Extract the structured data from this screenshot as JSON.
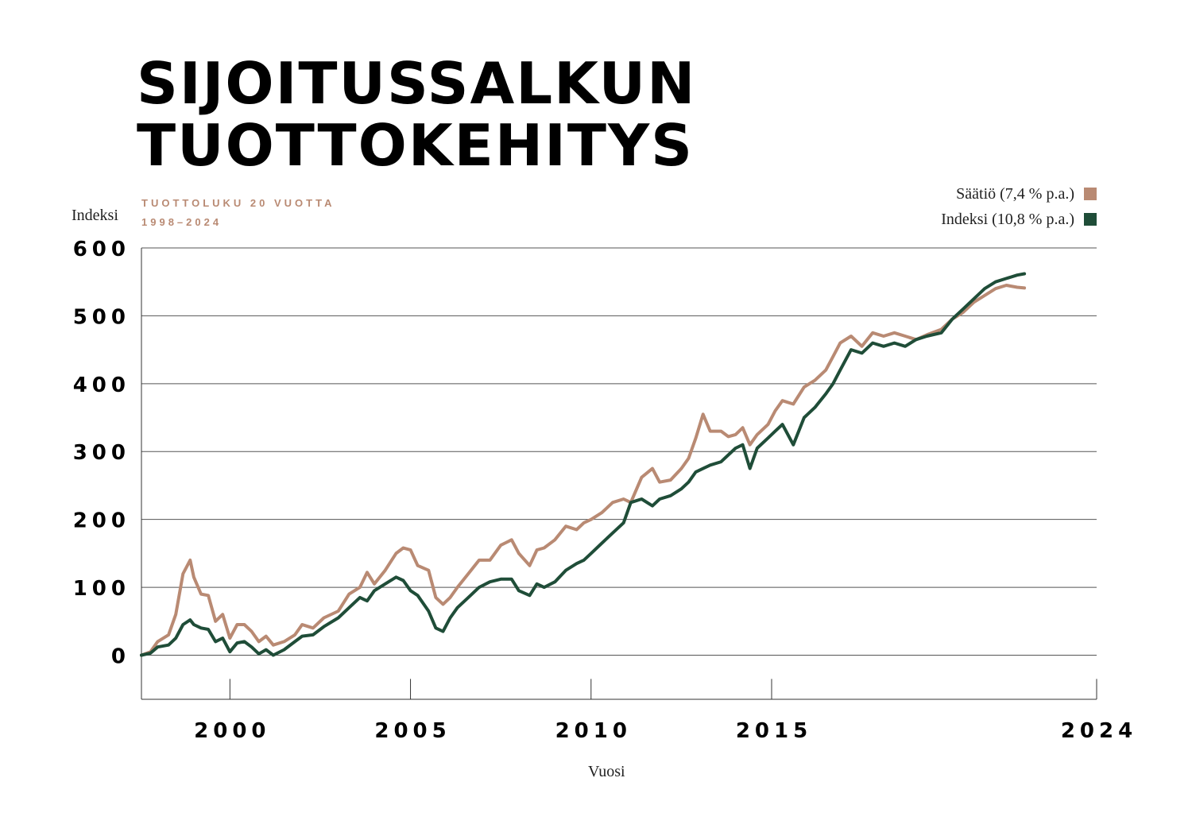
{
  "title_line1": "SIJOITUSSALKUN",
  "title_line2": "TUOTTOKEHITYS",
  "subtitle_line1": "TUOTTOLUKU 20 VUOTTA",
  "subtitle_line2": "1998–2024",
  "colors": {
    "saatio": "#b98a73",
    "indeksi": "#1f4d38",
    "subtitle": "#b98a73",
    "grid": "#555555"
  },
  "chart_data": {
    "type": "line",
    "xlabel": "Vuosi",
    "ylabel": "Indeksi",
    "xlim": [
      1997.55,
      2024.0
    ],
    "ylim": [
      -65,
      600
    ],
    "yticks": [
      0,
      100,
      200,
      300,
      400,
      500,
      600
    ],
    "xticks": [
      2000,
      2005,
      2010,
      2015,
      2024
    ],
    "grid": "horizontal",
    "legend": "top-right",
    "series": [
      {
        "name": "Säätiö (7,4 % p.a.)",
        "x": [
          1997.55,
          1997.8,
          1998.0,
          1998.3,
          1998.5,
          1998.7,
          1998.9,
          1999.0,
          1999.2,
          1999.4,
          1999.6,
          1999.8,
          2000.0,
          2000.2,
          2000.4,
          2000.6,
          2000.8,
          2001.0,
          2001.2,
          2001.5,
          2001.8,
          2002.0,
          2002.3,
          2002.6,
          2003.0,
          2003.3,
          2003.6,
          2003.8,
          2004.0,
          2004.3,
          2004.6,
          2004.8,
          2005.0,
          2005.2,
          2005.5,
          2005.7,
          2005.9,
          2006.1,
          2006.3,
          2006.6,
          2006.9,
          2007.2,
          2007.5,
          2007.8,
          2008.0,
          2008.3,
          2008.5,
          2008.7,
          2009.0,
          2009.3,
          2009.6,
          2009.8,
          2010.0,
          2010.3,
          2010.6,
          2010.9,
          2011.1,
          2011.4,
          2011.7,
          2011.9,
          2012.2,
          2012.5,
          2012.7,
          2012.9,
          2013.1,
          2013.3,
          2013.6,
          2013.8,
          2014.0,
          2014.2,
          2014.4,
          2014.6,
          2014.9,
          2015.1,
          2015.3,
          2015.6,
          2015.9,
          2016.2,
          2016.5,
          2016.7,
          2016.9,
          2017.2,
          2017.5,
          2017.8,
          2018.1,
          2018.4,
          2018.7,
          2019.0,
          2019.3,
          2019.7,
          2020.0,
          2020.3,
          2020.6,
          2020.9,
          2021.2,
          2021.5,
          2021.8,
          2022.0
        ],
        "values": [
          0,
          5,
          20,
          30,
          60,
          120,
          140,
          115,
          90,
          88,
          50,
          60,
          25,
          45,
          45,
          35,
          20,
          28,
          15,
          20,
          30,
          45,
          40,
          55,
          65,
          90,
          100,
          122,
          105,
          125,
          150,
          158,
          155,
          132,
          125,
          85,
          75,
          85,
          100,
          120,
          140,
          140,
          162,
          170,
          150,
          132,
          155,
          158,
          170,
          190,
          185,
          195,
          200,
          210,
          225,
          230,
          225,
          262,
          275,
          255,
          258,
          275,
          290,
          320,
          355,
          330,
          330,
          322,
          325,
          335,
          310,
          325,
          340,
          360,
          375,
          370,
          395,
          405,
          420,
          440,
          460,
          470,
          455,
          475,
          470,
          475,
          470,
          465,
          472,
          480,
          495,
          505,
          520,
          530,
          540,
          545,
          542,
          541
        ]
      },
      {
        "name": "Indeksi (10,8 % p.a.)",
        "x": [
          1997.55,
          1997.8,
          1998.0,
          1998.3,
          1998.5,
          1998.7,
          1998.9,
          1999.0,
          1999.2,
          1999.4,
          1999.6,
          1999.8,
          2000.0,
          2000.2,
          2000.4,
          2000.6,
          2000.8,
          2001.0,
          2001.2,
          2001.5,
          2001.8,
          2002.0,
          2002.3,
          2002.6,
          2003.0,
          2003.3,
          2003.6,
          2003.8,
          2004.0,
          2004.3,
          2004.6,
          2004.8,
          2005.0,
          2005.2,
          2005.5,
          2005.7,
          2005.9,
          2006.1,
          2006.3,
          2006.6,
          2006.9,
          2007.2,
          2007.5,
          2007.8,
          2008.0,
          2008.3,
          2008.5,
          2008.7,
          2009.0,
          2009.3,
          2009.6,
          2009.8,
          2010.0,
          2010.3,
          2010.6,
          2010.9,
          2011.1,
          2011.4,
          2011.7,
          2011.9,
          2012.2,
          2012.5,
          2012.7,
          2012.9,
          2013.1,
          2013.3,
          2013.6,
          2013.8,
          2014.0,
          2014.2,
          2014.4,
          2014.6,
          2014.9,
          2015.1,
          2015.3,
          2015.6,
          2015.9,
          2016.2,
          2016.5,
          2016.7,
          2016.9,
          2017.2,
          2017.5,
          2017.8,
          2018.1,
          2018.4,
          2018.7,
          2019.0,
          2019.3,
          2019.7,
          2020.0,
          2020.3,
          2020.6,
          2020.9,
          2021.2,
          2021.5,
          2021.8,
          2022.0
        ],
        "values": [
          0,
          3,
          12,
          15,
          25,
          45,
          52,
          45,
          40,
          38,
          20,
          25,
          5,
          18,
          20,
          12,
          2,
          8,
          0,
          8,
          20,
          28,
          30,
          42,
          55,
          70,
          85,
          80,
          95,
          105,
          115,
          110,
          95,
          88,
          65,
          40,
          35,
          55,
          70,
          85,
          100,
          108,
          112,
          112,
          95,
          88,
          105,
          100,
          108,
          125,
          135,
          140,
          150,
          165,
          180,
          195,
          225,
          230,
          220,
          230,
          235,
          245,
          255,
          270,
          275,
          280,
          285,
          295,
          305,
          310,
          275,
          305,
          320,
          330,
          340,
          310,
          350,
          365,
          385,
          400,
          420,
          450,
          445,
          460,
          455,
          460,
          455,
          465,
          470,
          475,
          495,
          510,
          525,
          540,
          550,
          555,
          560,
          562
        ]
      }
    ]
  }
}
